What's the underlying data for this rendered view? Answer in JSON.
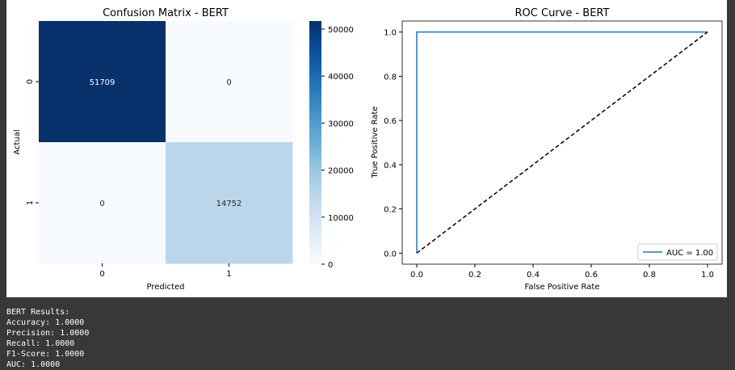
{
  "chart_data": [
    {
      "type": "heatmap",
      "title": "Confusion Matrix - BERT",
      "xlabel": "Predicted",
      "ylabel": "Actual",
      "x_categories": [
        "0",
        "1"
      ],
      "y_categories": [
        "0",
        "1"
      ],
      "values": [
        [
          51709,
          0
        ],
        [
          0,
          14752
        ]
      ],
      "colorbar": {
        "min": 0,
        "max": 51709,
        "ticks": [
          0,
          10000,
          20000,
          30000,
          40000,
          50000
        ],
        "colormap": "Blues"
      }
    },
    {
      "type": "line",
      "title": "ROC Curve - BERT",
      "xlabel": "False Positive Rate",
      "ylabel": "True Positive Rate",
      "xlim": [
        -0.05,
        1.05
      ],
      "ylim": [
        -0.05,
        1.05
      ],
      "xticks": [
        "0.0",
        "0.2",
        "0.4",
        "0.6",
        "0.8",
        "1.0"
      ],
      "yticks": [
        "0.0",
        "0.2",
        "0.4",
        "0.6",
        "0.8",
        "1.0"
      ],
      "series": [
        {
          "name": "AUC = 1.00",
          "x": [
            0,
            0,
            1
          ],
          "y": [
            0,
            1,
            1
          ],
          "color": "#1f77b4",
          "style": "solid"
        },
        {
          "x": [
            0,
            1
          ],
          "y": [
            0,
            1
          ],
          "color": "#000000",
          "style": "dashed"
        }
      ],
      "legend": "bottom-right"
    }
  ],
  "output": {
    "lines": [
      "BERT Results:",
      "Accuracy: 1.0000",
      "Precision: 1.0000",
      "Recall: 1.0000",
      "F1-Score: 1.0000",
      "AUC: 1.0000"
    ]
  }
}
